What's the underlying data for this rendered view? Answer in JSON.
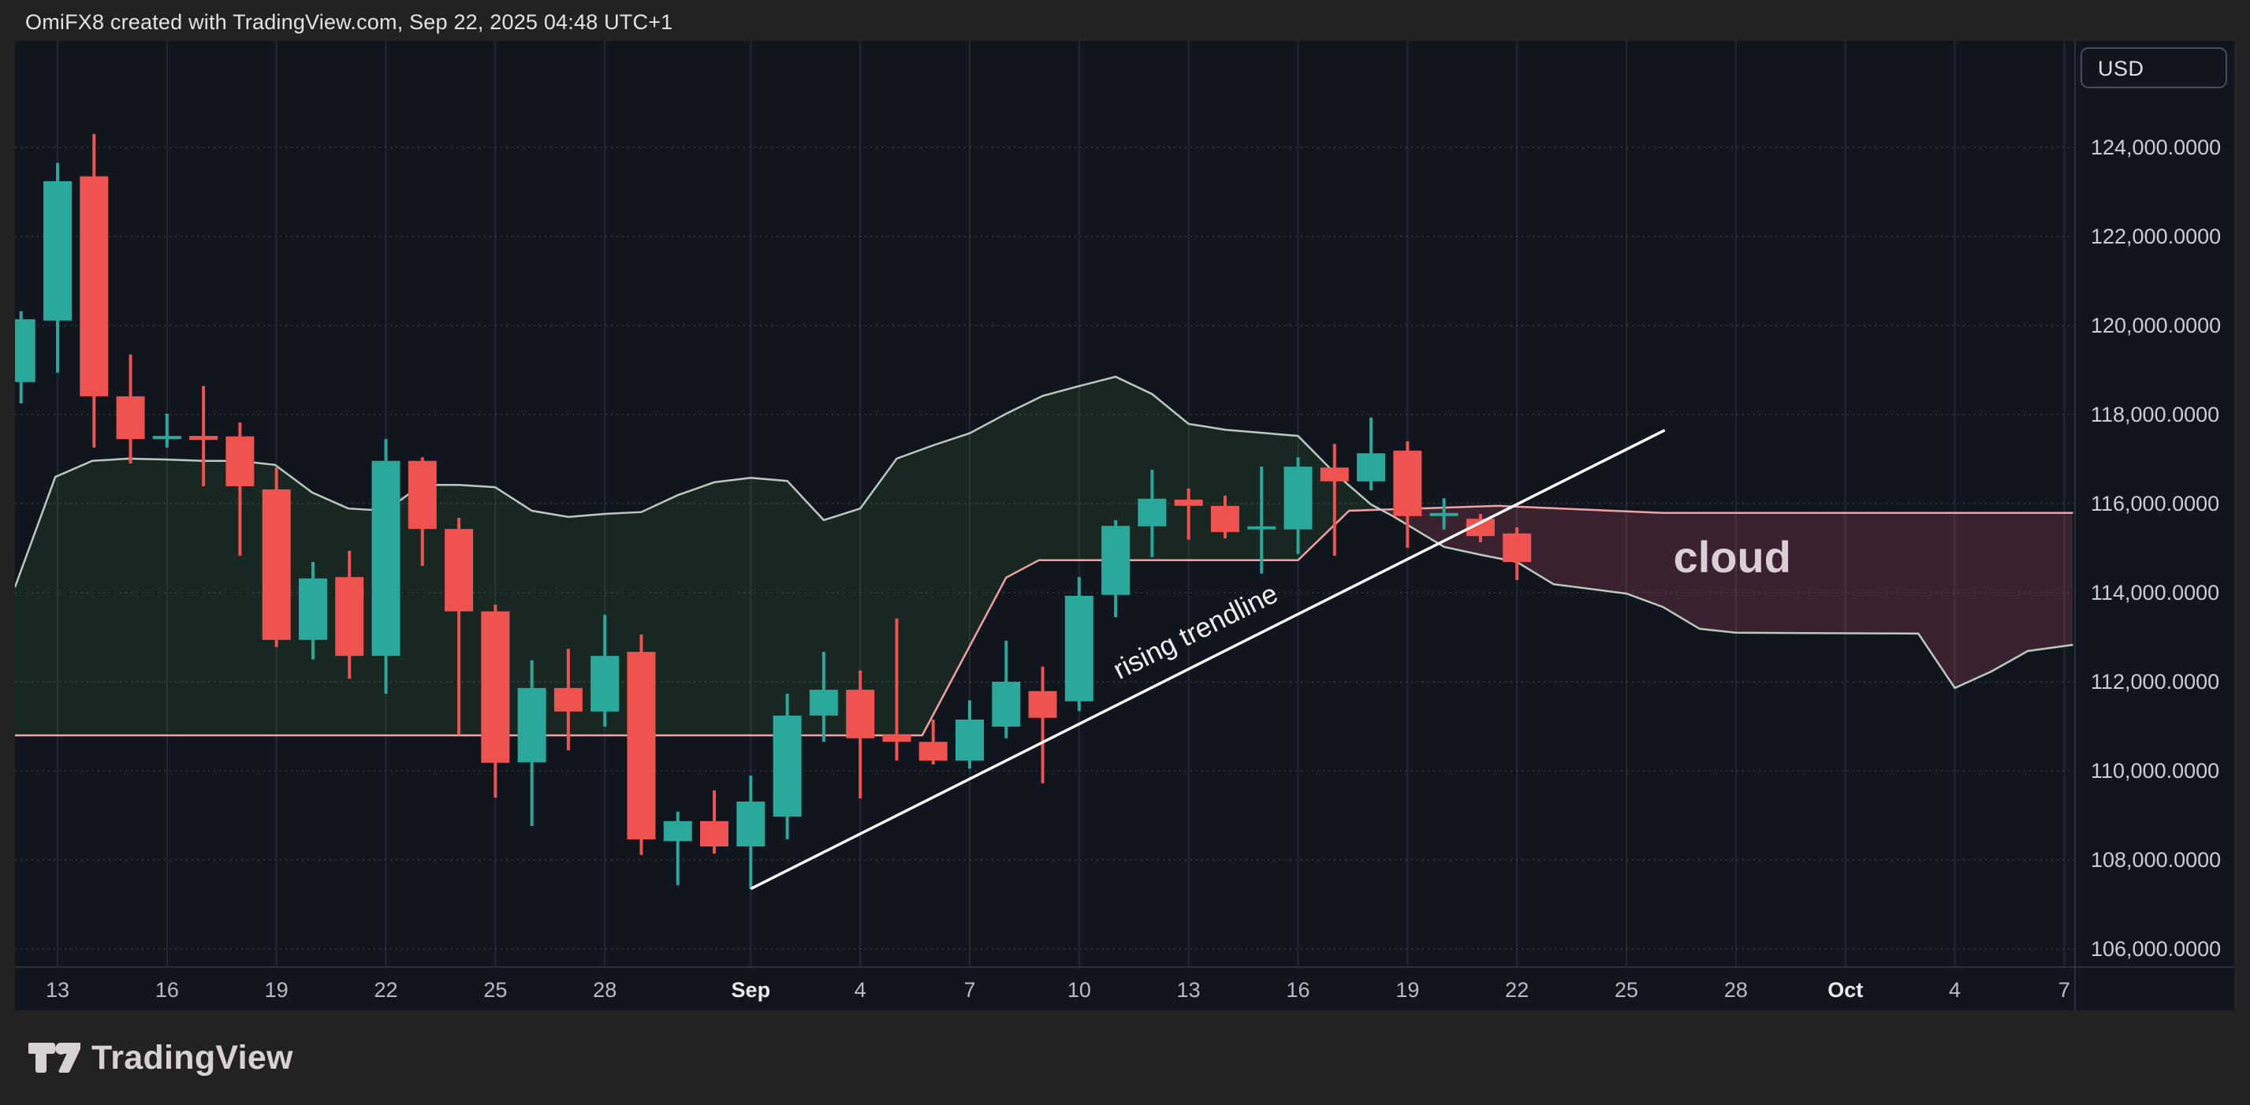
{
  "header": {
    "title": "OmiFX8 created with TradingView.com, Sep 22, 2025 04:48 UTC+1"
  },
  "price_axis": {
    "currency": "USD",
    "labels": [
      {
        "text": "124,000.0000",
        "price": 124000
      },
      {
        "text": "122,000.0000",
        "price": 122000
      },
      {
        "text": "120,000.0000",
        "price": 120000
      },
      {
        "text": "118,000.0000",
        "price": 118000
      },
      {
        "text": "116,000.0000",
        "price": 116000
      },
      {
        "text": "114,000.0000",
        "price": 114000
      },
      {
        "text": "112,000.0000",
        "price": 112000
      },
      {
        "text": "110,000.0000",
        "price": 110000
      },
      {
        "text": "108,000.0000",
        "price": 108000
      },
      {
        "text": "106,000.0000",
        "price": 106000
      }
    ]
  },
  "time_axis": {
    "ticks": [
      {
        "label": "13",
        "day": 1,
        "emphasis": false
      },
      {
        "label": "16",
        "day": 4,
        "emphasis": false
      },
      {
        "label": "19",
        "day": 7,
        "emphasis": false
      },
      {
        "label": "22",
        "day": 10,
        "emphasis": false
      },
      {
        "label": "25",
        "day": 13,
        "emphasis": false
      },
      {
        "label": "28",
        "day": 16,
        "emphasis": false
      },
      {
        "label": "Sep",
        "day": 20,
        "emphasis": true
      },
      {
        "label": "4",
        "day": 23,
        "emphasis": false
      },
      {
        "label": "7",
        "day": 26,
        "emphasis": false
      },
      {
        "label": "10",
        "day": 29,
        "emphasis": false
      },
      {
        "label": "13",
        "day": 32,
        "emphasis": false
      },
      {
        "label": "16",
        "day": 35,
        "emphasis": false
      },
      {
        "label": "19",
        "day": 38,
        "emphasis": false
      },
      {
        "label": "22",
        "day": 41,
        "emphasis": false
      },
      {
        "label": "25",
        "day": 44,
        "emphasis": false
      },
      {
        "label": "28",
        "day": 47,
        "emphasis": false
      },
      {
        "label": "Oct",
        "day": 50,
        "emphasis": true
      },
      {
        "label": "4",
        "day": 53,
        "emphasis": false
      },
      {
        "label": "7",
        "day": 56,
        "emphasis": false
      }
    ]
  },
  "chart_data": {
    "type": "candlestick-with-ichimoku-cloud",
    "ylim": [
      105000,
      125200
    ],
    "grid": true,
    "candles": [
      [
        118730,
        120320,
        118250,
        120140
      ],
      [
        120110,
        123650,
        118940,
        123240
      ],
      [
        123350,
        124300,
        117260,
        118410
      ],
      [
        118410,
        119350,
        116900,
        117450
      ],
      [
        117450,
        118020,
        117260,
        117520
      ],
      [
        117520,
        118640,
        116390,
        117430
      ],
      [
        117510,
        117820,
        114830,
        116390
      ],
      [
        116320,
        116810,
        112780,
        112940
      ],
      [
        112940,
        114690,
        112500,
        114320
      ],
      [
        114350,
        114940,
        112070,
        112580
      ],
      [
        112580,
        117450,
        111730,
        116960
      ],
      [
        116960,
        117040,
        114600,
        115430
      ],
      [
        115430,
        115680,
        110810,
        113580
      ],
      [
        113580,
        113730,
        109400,
        110180
      ],
      [
        110190,
        112480,
        108760,
        111860
      ],
      [
        111860,
        112740,
        110460,
        111330
      ],
      [
        111330,
        113500,
        110990,
        112580
      ],
      [
        112670,
        113060,
        108110,
        108460
      ],
      [
        108420,
        109080,
        107430,
        108870
      ],
      [
        108870,
        109560,
        108140,
        108300
      ],
      [
        108300,
        109890,
        107350,
        109310
      ],
      [
        108970,
        111730,
        108460,
        111240
      ],
      [
        111240,
        112670,
        110650,
        111820
      ],
      [
        111820,
        112250,
        109380,
        110730
      ],
      [
        110810,
        113420,
        110230,
        110650
      ],
      [
        110650,
        111150,
        110140,
        110230
      ],
      [
        110230,
        111580,
        110050,
        111150
      ],
      [
        110990,
        112920,
        110730,
        112000
      ],
      [
        111790,
        112340,
        109720,
        111190
      ],
      [
        111560,
        114350,
        111340,
        113930
      ],
      [
        113950,
        115630,
        113450,
        115500
      ],
      [
        115490,
        116760,
        114800,
        116110
      ],
      [
        116090,
        116340,
        115190,
        115950
      ],
      [
        115950,
        116180,
        115220,
        115360
      ],
      [
        115420,
        116830,
        114430,
        115490
      ],
      [
        115420,
        117040,
        114870,
        116830
      ],
      [
        116810,
        117340,
        114830,
        116500
      ],
      [
        116500,
        117930,
        116300,
        117130
      ],
      [
        117190,
        117400,
        115010,
        115720
      ],
      [
        115720,
        116120,
        115420,
        115790
      ],
      [
        115660,
        115770,
        115130,
        115270
      ],
      [
        115330,
        115470,
        114280,
        114690
      ]
    ],
    "senkou_a": [
      [
        -0.17,
        114120
      ],
      [
        0.94,
        116600
      ],
      [
        1.95,
        116960
      ],
      [
        2.94,
        117010
      ],
      [
        3.96,
        116990
      ],
      [
        4.95,
        116960
      ],
      [
        5.97,
        116960
      ],
      [
        6.96,
        116870
      ],
      [
        7.98,
        116250
      ],
      [
        8.97,
        115890
      ],
      [
        9.99,
        115840
      ],
      [
        10.98,
        116420
      ],
      [
        12,
        116420
      ],
      [
        12.99,
        116370
      ],
      [
        14,
        115840
      ],
      [
        15,
        115700
      ],
      [
        16,
        115770
      ],
      [
        17,
        115810
      ],
      [
        18,
        116190
      ],
      [
        19,
        116480
      ],
      [
        20,
        116580
      ],
      [
        21,
        116510
      ],
      [
        22,
        115630
      ],
      [
        23,
        115890
      ],
      [
        24,
        117010
      ],
      [
        25,
        117310
      ],
      [
        26,
        117580
      ],
      [
        27,
        118020
      ],
      [
        28,
        118420
      ],
      [
        29,
        118640
      ],
      [
        30,
        118850
      ],
      [
        31,
        118460
      ],
      [
        32,
        117790
      ],
      [
        33,
        117660
      ],
      [
        34,
        117590
      ],
      [
        35,
        117520
      ],
      [
        36,
        116690
      ],
      [
        37,
        115980
      ],
      [
        37.6,
        115720
      ],
      [
        39,
        115030
      ],
      [
        40,
        114850
      ],
      [
        41,
        114690
      ],
      [
        42,
        114190
      ],
      [
        44,
        113980
      ],
      [
        45,
        113680
      ],
      [
        46,
        113190
      ],
      [
        47,
        113100
      ],
      [
        52,
        113080
      ],
      [
        53,
        111860
      ],
      [
        54,
        112230
      ],
      [
        55,
        112690
      ],
      [
        56.24,
        112830
      ]
    ],
    "senkou_b": [
      [
        -0.17,
        110795
      ],
      [
        24.7,
        110795
      ],
      [
        27,
        114340
      ],
      [
        27.9,
        114730
      ],
      [
        35,
        114730
      ],
      [
        36.4,
        115840
      ],
      [
        40.5,
        115950
      ],
      [
        45,
        115790
      ],
      [
        56.24,
        115790
      ]
    ],
    "annotations": {
      "trendline": {
        "d1": 20.0,
        "p1": 107350,
        "d2": 45.05,
        "p2": 117650,
        "label": "rising trendline",
        "label_d": 32.3,
        "label_p": 112940,
        "label_angle": -26.5
      },
      "cloud_label": {
        "text": "cloud",
        "d": 46.9,
        "p": 114810
      }
    },
    "colors": {
      "up": "#2aa89c",
      "down": "#ee5350",
      "senkou_a_line": "#bac9bd",
      "senkou_b_line": "#f0a2a2",
      "cloud_bull_fill": "rgba(82,170,60,0.12)",
      "cloud_bear_fill": "rgba(255,92,134,0.18)",
      "trendline": "#ffffff",
      "annotation_text": "#f2f2f2",
      "cloud_text": "#d9cfd4"
    }
  },
  "footer": {
    "brand": "TradingView"
  }
}
